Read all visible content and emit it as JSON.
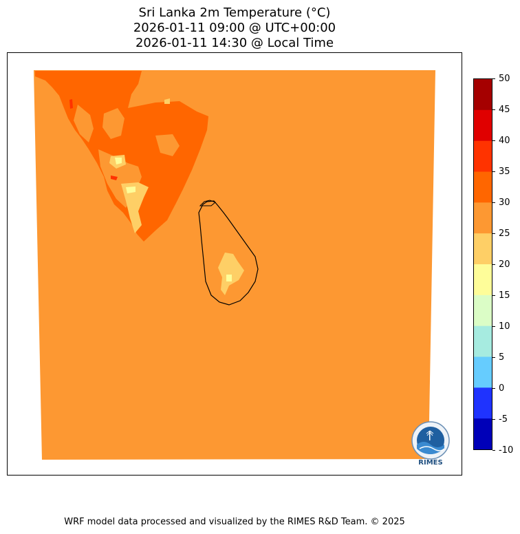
{
  "title": {
    "line1": "Sri Lanka 2m Temperature (°C)",
    "line2": "2026-01-11 09:00 @ UTC+00:00",
    "line3": "2026-01-11 14:30 @ Local Time"
  },
  "colorbar": {
    "ticks": [
      "50",
      "45",
      "40",
      "35",
      "30",
      "25",
      "20",
      "15",
      "10",
      "5",
      "0",
      "-5",
      "-10"
    ],
    "bins": [
      {
        "range": "45-50",
        "color": "#a50000"
      },
      {
        "range": "40-45",
        "color": "#e00000"
      },
      {
        "range": "35-40",
        "color": "#ff3300"
      },
      {
        "range": "30-35",
        "color": "#ff6600"
      },
      {
        "range": "25-30",
        "color": "#fd9832"
      },
      {
        "range": "20-25",
        "color": "#fecf66"
      },
      {
        "range": "15-20",
        "color": "#fefd99"
      },
      {
        "range": "10-15",
        "color": "#dbfdc6"
      },
      {
        "range": "5-10",
        "color": "#a6ebe0"
      },
      {
        "range": "0-5",
        "color": "#66ccfe"
      },
      {
        "range": "-5-0",
        "color": "#1f33fe"
      },
      {
        "range": "-10--5",
        "color": "#0000b8"
      }
    ]
  },
  "map": {
    "background_color": "#fd9832",
    "warm_region_color": "#ff6600",
    "cool_patch_color": "#fecf66",
    "coolest_patch_color": "#fefd99",
    "hot_spot_color": "#ff3300",
    "coastline_color": "#000000"
  },
  "logo": {
    "text": "RIMES"
  },
  "footer": {
    "text": "WRF model data processed and visualized by the RIMES R&D Team. © 2025"
  }
}
